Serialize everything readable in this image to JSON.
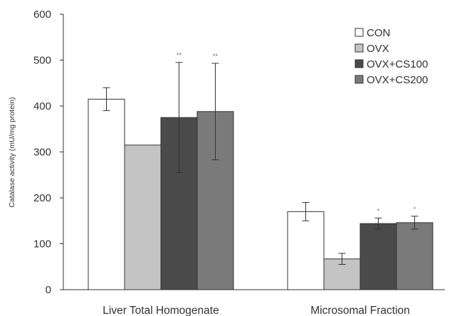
{
  "chart_data": {
    "type": "bar",
    "ylabel": "Catalase activity (mU/mg protein)",
    "ylim": [
      0,
      600
    ],
    "yticks": [
      0,
      100,
      200,
      300,
      400,
      500,
      600
    ],
    "yticks_labels": [
      "0",
      "100",
      "200",
      "300",
      "400",
      "500",
      "600"
    ],
    "categories": [
      "Liver Total Homogenate",
      "Microsomal Fraction"
    ],
    "legend_position": "top-right",
    "grid": false,
    "series": [
      {
        "name": "CON",
        "values": [
          415,
          170
        ],
        "errors": [
          25,
          20
        ],
        "annotations": [
          "",
          ""
        ],
        "color": "#ffffff"
      },
      {
        "name": "OVX",
        "values": [
          315,
          67
        ],
        "errors": [
          0,
          12
        ],
        "annotations": [
          "",
          ""
        ],
        "color": "#c4c4c4"
      },
      {
        "name": "OVX+CS100",
        "values": [
          375,
          144
        ],
        "errors": [
          120,
          12
        ],
        "annotations": [
          "**",
          "*"
        ],
        "color": "#4a4a4a"
      },
      {
        "name": "OVX+CS200",
        "values": [
          388,
          146
        ],
        "errors": [
          105,
          14
        ],
        "annotations": [
          "**",
          "*"
        ],
        "color": "#7a7a7a"
      }
    ]
  }
}
